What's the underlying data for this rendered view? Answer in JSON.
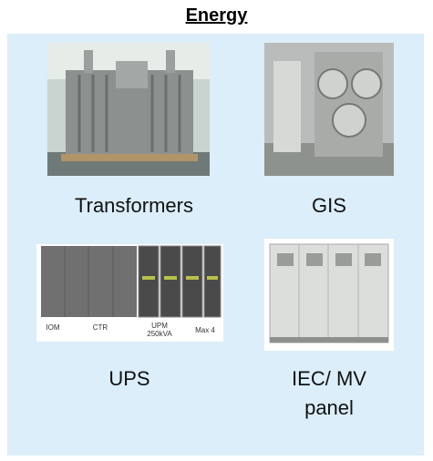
{
  "header": {
    "title": "Energy"
  },
  "items": [
    {
      "label": [
        "Transformers"
      ]
    },
    {
      "label": [
        "GIS"
      ]
    },
    {
      "label": [
        "UPS"
      ],
      "image_labels": [
        "IOM",
        "CTR",
        "UPM",
        "250kVA",
        "Max 4"
      ]
    },
    {
      "label": [
        "IEC/ MV",
        "panel"
      ]
    }
  ]
}
